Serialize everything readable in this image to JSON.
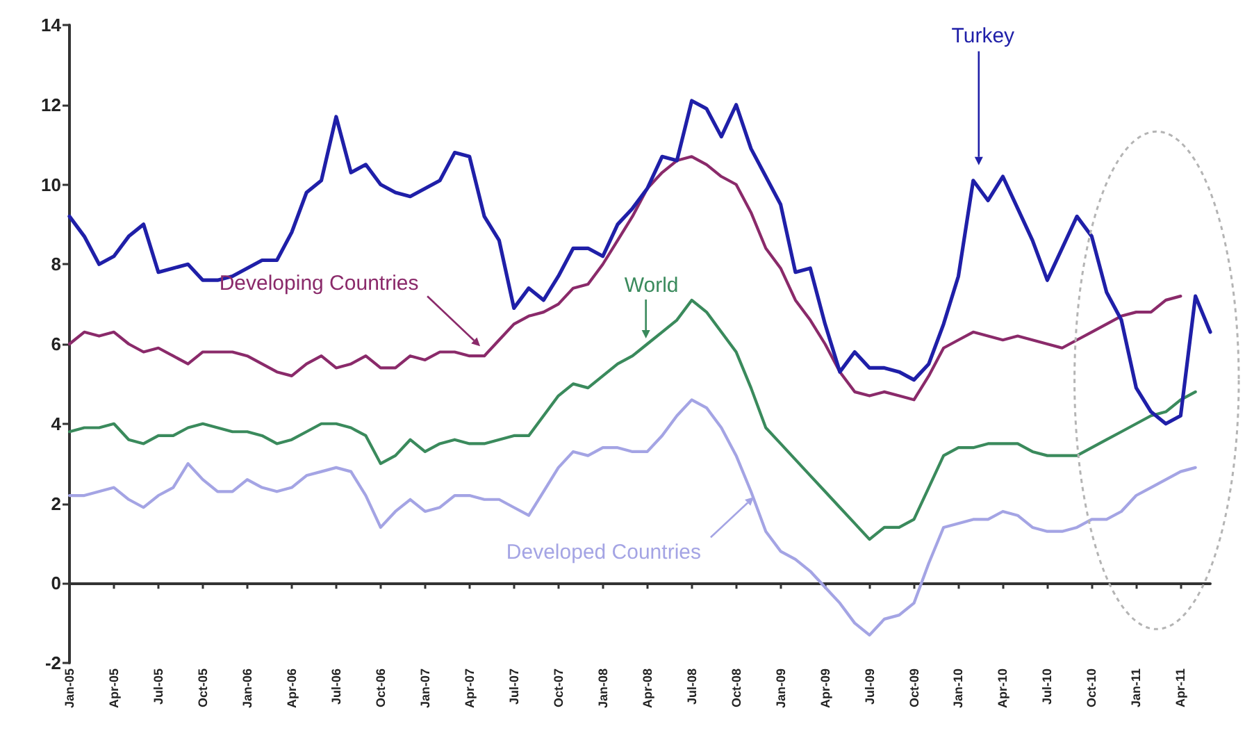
{
  "chart_data": {
    "type": "line",
    "categories": [
      "Jan-05",
      null,
      null,
      "Apr-05",
      null,
      null,
      "Jul-05",
      null,
      null,
      "Oct-05",
      null,
      null,
      "Jan-06",
      null,
      null,
      "Apr-06",
      null,
      null,
      "Jul-06",
      null,
      null,
      "Oct-06",
      null,
      null,
      "Jan-07",
      null,
      null,
      "Apr-07",
      null,
      null,
      "Jul-07",
      null,
      null,
      "Oct-07",
      null,
      null,
      "Jan-08",
      null,
      null,
      "Apr-08",
      null,
      null,
      "Jul-08",
      null,
      null,
      "Oct-08",
      null,
      null,
      "Jan-09",
      null,
      null,
      "Apr-09",
      null,
      null,
      "Jul-09",
      null,
      null,
      "Oct-09",
      null,
      null,
      "Jan-10",
      null,
      null,
      "Apr-10",
      null,
      null,
      "Jul-10",
      null,
      null,
      "Oct-10",
      null,
      null,
      "Jan-11",
      null,
      null,
      "Apr-11",
      null,
      null
    ],
    "series": [
      {
        "name": "Turkey",
        "color": "#1f1fa8",
        "values": [
          9.2,
          8.7,
          8.0,
          8.2,
          8.7,
          9.0,
          7.8,
          7.9,
          8.0,
          7.6,
          7.6,
          7.7,
          7.9,
          8.1,
          8.1,
          8.8,
          9.8,
          10.1,
          11.7,
          10.3,
          10.5,
          10.0,
          9.8,
          9.7,
          9.9,
          10.1,
          10.8,
          10.7,
          9.2,
          8.6,
          6.9,
          7.4,
          7.1,
          7.7,
          8.4,
          8.4,
          8.2,
          9.0,
          9.4,
          9.9,
          10.7,
          10.6,
          12.1,
          11.9,
          11.2,
          12.0,
          10.9,
          10.2,
          9.5,
          7.8,
          7.9,
          6.5,
          5.3,
          5.8,
          5.4,
          5.4,
          5.3,
          5.1,
          5.5,
          6.5,
          7.7,
          10.1,
          9.6,
          10.2,
          9.4,
          8.6,
          7.6,
          8.4,
          9.2,
          8.7,
          7.3,
          6.6,
          4.9,
          4.3,
          4.0,
          4.2,
          7.2,
          6.3
        ]
      },
      {
        "name": "Developing Countries",
        "color": "#8a2a6a",
        "values": [
          6.0,
          6.3,
          6.2,
          6.3,
          6.0,
          5.8,
          5.9,
          5.7,
          5.5,
          5.8,
          5.8,
          5.8,
          5.7,
          5.5,
          5.3,
          5.2,
          5.5,
          5.7,
          5.4,
          5.5,
          5.7,
          5.4,
          5.4,
          5.7,
          5.6,
          5.8,
          5.8,
          5.7,
          5.7,
          6.1,
          6.5,
          6.7,
          6.8,
          7.0,
          7.4,
          7.5,
          8.0,
          8.6,
          9.2,
          9.9,
          10.3,
          10.6,
          10.7,
          10.5,
          10.2,
          10.0,
          9.3,
          8.4,
          7.9,
          7.1,
          6.6,
          6.0,
          5.3,
          4.8,
          4.7,
          4.8,
          4.7,
          4.6,
          5.2,
          5.9,
          6.1,
          6.3,
          6.2,
          6.1,
          6.2,
          6.1,
          6.0,
          5.9,
          6.1,
          6.3,
          6.5,
          6.7,
          6.8,
          6.8,
          7.1,
          7.2,
          null,
          null
        ]
      },
      {
        "name": "World",
        "color": "#3a8a5c",
        "values": [
          3.8,
          3.9,
          3.9,
          4.0,
          3.6,
          3.5,
          3.7,
          3.7,
          3.9,
          4.0,
          3.9,
          3.8,
          3.8,
          3.7,
          3.5,
          3.6,
          3.8,
          4.0,
          4.0,
          3.9,
          3.7,
          3.0,
          3.2,
          3.6,
          3.3,
          3.5,
          3.6,
          3.5,
          3.5,
          3.6,
          3.7,
          3.7,
          4.2,
          4.7,
          5.0,
          4.9,
          5.2,
          5.5,
          5.7,
          6.0,
          6.3,
          6.6,
          7.1,
          6.8,
          6.3,
          5.8,
          4.9,
          3.9,
          3.5,
          3.1,
          2.7,
          2.3,
          1.9,
          1.5,
          1.1,
          1.4,
          1.4,
          1.6,
          2.4,
          3.2,
          3.4,
          3.4,
          3.5,
          3.5,
          3.5,
          3.3,
          3.2,
          3.2,
          3.2,
          3.4,
          3.6,
          3.8,
          4.0,
          4.2,
          4.3,
          4.6,
          4.8,
          null
        ]
      },
      {
        "name": "Developed Countries",
        "color": "#a4a4e4",
        "values": [
          2.2,
          2.2,
          2.3,
          2.4,
          2.1,
          1.9,
          2.2,
          2.4,
          3.0,
          2.6,
          2.3,
          2.3,
          2.6,
          2.4,
          2.3,
          2.4,
          2.7,
          2.8,
          2.9,
          2.8,
          2.2,
          1.4,
          1.8,
          2.1,
          1.8,
          1.9,
          2.2,
          2.2,
          2.1,
          2.1,
          1.9,
          1.7,
          2.3,
          2.9,
          3.3,
          3.2,
          3.4,
          3.4,
          3.3,
          3.3,
          3.7,
          4.2,
          4.6,
          4.4,
          3.9,
          3.2,
          2.3,
          1.3,
          0.8,
          0.6,
          0.3,
          -0.1,
          -0.5,
          -1.0,
          -1.3,
          -0.9,
          -0.8,
          -0.5,
          0.5,
          1.4,
          1.5,
          1.6,
          1.6,
          1.8,
          1.7,
          1.4,
          1.3,
          1.3,
          1.4,
          1.6,
          1.6,
          1.8,
          2.2,
          2.4,
          2.6,
          2.8,
          2.9,
          null
        ]
      }
    ],
    "ylim": [
      -2,
      14
    ],
    "yticks": [
      -2,
      0,
      2,
      4,
      6,
      8,
      10,
      12,
      14
    ],
    "marker": "none",
    "line_style": "solid"
  }
}
